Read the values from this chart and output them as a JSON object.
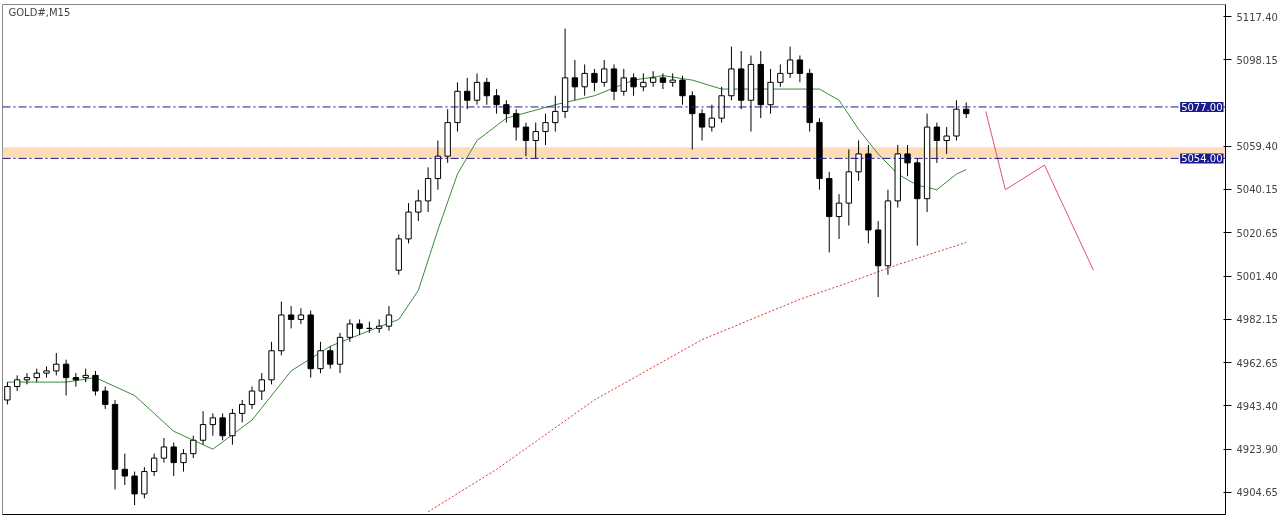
{
  "chart_data": {
    "type": "candlestick",
    "title": "GOLD#,M15",
    "categories": [
      null,
      null,
      null,
      null,
      null,
      null,
      null,
      null,
      null,
      null,
      null,
      null,
      null,
      null,
      null,
      null,
      null,
      null,
      null,
      null,
      null,
      null,
      null,
      null,
      null,
      null,
      null,
      null,
      null,
      null,
      null,
      null,
      null,
      null,
      null,
      null,
      null,
      null,
      null,
      null,
      null,
      null,
      null,
      null,
      null,
      null,
      null,
      null,
      null,
      null,
      null,
      null,
      null,
      null,
      null,
      null,
      null,
      null,
      null,
      null,
      null,
      null,
      null,
      null,
      null,
      null,
      null,
      null,
      null,
      null,
      null,
      null,
      null,
      null,
      null,
      null,
      null,
      null,
      null,
      null,
      null,
      null,
      null,
      null,
      null,
      null,
      null,
      null,
      null,
      null,
      null,
      null,
      null,
      null,
      null,
      null,
      null,
      null,
      null,
      null,
      null,
      null,
      null,
      null,
      null,
      null,
      null,
      null,
      null,
      null,
      null,
      null,
      null,
      null,
      null,
      null,
      null,
      null,
      null,
      null,
      null,
      null,
      null,
      null,
      null
    ],
    "ohlc": [
      [
        4946,
        4954,
        4944,
        4952
      ],
      [
        4952,
        4957,
        4950,
        4955
      ],
      [
        4955,
        4958,
        4953,
        4956
      ],
      [
        4956,
        4960,
        4954,
        4958
      ],
      [
        4958,
        4961,
        4956,
        4959
      ],
      [
        4959,
        4967,
        4957,
        4962
      ],
      [
        4962,
        4964,
        4948,
        4956
      ],
      [
        4956,
        4958,
        4952,
        4955
      ],
      [
        4956,
        4960,
        4954,
        4957
      ],
      [
        4957,
        4959,
        4948,
        4950
      ],
      [
        4950,
        4952,
        4942,
        4944
      ],
      [
        4944,
        4946,
        4906,
        4915
      ],
      [
        4915,
        4922,
        4908,
        4912
      ],
      [
        4912,
        4914,
        4899,
        4904
      ],
      [
        4904,
        4916,
        4902,
        4914
      ],
      [
        4914,
        4922,
        4912,
        4920
      ],
      [
        4920,
        4929,
        4918,
        4925
      ],
      [
        4925,
        4927,
        4912,
        4918
      ],
      [
        4918,
        4924,
        4914,
        4922
      ],
      [
        4922,
        4930,
        4920,
        4928
      ],
      [
        4928,
        4941,
        4926,
        4935
      ],
      [
        4935,
        4940,
        4930,
        4938
      ],
      [
        4938,
        4940,
        4928,
        4930
      ],
      [
        4930,
        4942,
        4926,
        4940
      ],
      [
        4940,
        4946,
        4936,
        4944
      ],
      [
        4944,
        4952,
        4942,
        4950
      ],
      [
        4950,
        4958,
        4946,
        4955
      ],
      [
        4955,
        4972,
        4953,
        4968
      ],
      [
        4968,
        4990,
        4966,
        4984
      ],
      [
        4984,
        4988,
        4978,
        4982
      ],
      [
        4982,
        4987,
        4980,
        4984
      ],
      [
        4984,
        4986,
        4956,
        4960
      ],
      [
        4960,
        4972,
        4958,
        4968
      ],
      [
        4968,
        4970,
        4960,
        4962
      ],
      [
        4962,
        4976,
        4958,
        4974
      ],
      [
        4974,
        4982,
        4972,
        4980
      ],
      [
        4980,
        4982,
        4975,
        4978
      ],
      [
        4978,
        4981,
        4976,
        4978
      ],
      [
        4978,
        4982,
        4976,
        4979
      ],
      [
        4979,
        4988,
        4977,
        4984
      ],
      [
        5004,
        5020,
        5002,
        5018
      ],
      [
        5018,
        5034,
        5016,
        5030
      ],
      [
        5030,
        5040,
        5026,
        5035
      ],
      [
        5035,
        5050,
        5030,
        5045
      ],
      [
        5045,
        5062,
        5040,
        5055
      ],
      [
        5055,
        5076,
        5052,
        5070
      ],
      [
        5070,
        5088,
        5066,
        5084
      ],
      [
        5084,
        5090,
        5076,
        5080
      ],
      [
        5080,
        5092,
        5078,
        5088
      ],
      [
        5088,
        5090,
        5078,
        5082
      ],
      [
        5082,
        5085,
        5074,
        5078
      ],
      [
        5078,
        5080,
        5070,
        5074
      ],
      [
        5074,
        5076,
        5062,
        5068
      ],
      [
        5068,
        5070,
        5055,
        5062
      ],
      [
        5062,
        5070,
        5054,
        5066
      ],
      [
        5066,
        5074,
        5060,
        5070
      ],
      [
        5070,
        5082,
        5066,
        5075
      ],
      [
        5075,
        5112,
        5072,
        5090
      ],
      [
        5090,
        5098,
        5080,
        5086
      ],
      [
        5086,
        5096,
        5082,
        5092
      ],
      [
        5092,
        5094,
        5084,
        5088
      ],
      [
        5088,
        5098,
        5086,
        5094
      ],
      [
        5094,
        5096,
        5080,
        5084
      ],
      [
        5084,
        5094,
        5082,
        5090
      ],
      [
        5090,
        5092,
        5082,
        5086
      ],
      [
        5086,
        5092,
        5084,
        5088
      ],
      [
        5088,
        5093,
        5086,
        5090
      ],
      [
        5090,
        5092,
        5085,
        5088
      ],
      [
        5088,
        5092,
        5086,
        5089
      ],
      [
        5089,
        5091,
        5078,
        5082
      ],
      [
        5082,
        5084,
        5058,
        5074
      ],
      [
        5074,
        5076,
        5062,
        5068
      ],
      [
        5068,
        5078,
        5066,
        5072
      ],
      [
        5072,
        5086,
        5070,
        5082
      ],
      [
        5082,
        5104,
        5080,
        5094
      ],
      [
        5094,
        5102,
        5076,
        5080
      ],
      [
        5080,
        5100,
        5066,
        5096
      ],
      [
        5096,
        5102,
        5072,
        5078
      ],
      [
        5078,
        5094,
        5074,
        5088
      ],
      [
        5088,
        5096,
        5086,
        5092
      ],
      [
        5092,
        5104,
        5090,
        5098
      ],
      [
        5098,
        5100,
        5088,
        5092
      ],
      [
        5092,
        5094,
        5066,
        5070
      ],
      [
        5070,
        5072,
        5040,
        5045
      ],
      [
        5045,
        5048,
        5012,
        5028
      ],
      [
        5028,
        5038,
        5018,
        5034
      ],
      [
        5034,
        5058,
        5024,
        5048
      ],
      [
        5048,
        5062,
        5044,
        5056
      ],
      [
        5056,
        5060,
        5016,
        5022
      ],
      [
        5022,
        5026,
        4992,
        5006
      ],
      [
        5006,
        5040,
        5002,
        5035
      ],
      [
        5035,
        5060,
        5032,
        5056
      ],
      [
        5056,
        5060,
        5046,
        5052
      ],
      [
        5052,
        5054,
        5015,
        5036
      ],
      [
        5036,
        5074,
        5030,
        5068
      ],
      [
        5068,
        5070,
        5052,
        5062
      ],
      [
        5062,
        5068,
        5056,
        5064
      ],
      [
        5064,
        5080,
        5062,
        5076
      ],
      [
        5076,
        5079,
        5072,
        5074
      ],
      null,
      null,
      null,
      null,
      null,
      null,
      null,
      null,
      null,
      null,
      null,
      null,
      null,
      null,
      null,
      null,
      null,
      null,
      null,
      null,
      null,
      null,
      null,
      null,
      null,
      null
    ],
    "series": [
      {
        "type": "line",
        "color": "#3a8a3a",
        "line_style": "solid",
        "values": [
          4954,
          null,
          null,
          null,
          null,
          null,
          4954,
          null,
          null,
          4956,
          null,
          null,
          null,
          4948,
          null,
          null,
          null,
          4932,
          null,
          null,
          null,
          4924,
          null,
          null,
          null,
          4937,
          null,
          null,
          null,
          4959,
          null,
          null,
          null,
          4970,
          null,
          null,
          null,
          4977,
          null,
          null,
          4982,
          null,
          4995,
          null,
          5022,
          null,
          5047,
          null,
          5062,
          null,
          null,
          5072,
          null,
          null,
          null,
          null,
          5078,
          null,
          null,
          null,
          5082,
          null,
          null,
          null,
          5089,
          null,
          null,
          5091,
          null,
          null,
          5089,
          null,
          null,
          5085,
          null,
          null,
          null,
          5085,
          null,
          null,
          null,
          null,
          null,
          5085,
          null,
          5080,
          null,
          5067,
          null,
          5056,
          null,
          5047,
          null,
          5042,
          null,
          5040,
          null,
          5047,
          5049,
          null,
          null,
          null,
          null,
          null,
          null,
          null,
          null,
          null,
          null,
          null,
          null,
          null,
          null,
          null,
          null,
          null,
          null,
          null,
          null,
          null,
          null,
          null,
          null,
          null,
          null
        ]
      },
      {
        "type": "line",
        "color": "#e03030",
        "line_style": "dotted",
        "values": [
          null,
          null,
          null,
          null,
          null,
          null,
          null,
          null,
          null,
          null,
          null,
          null,
          null,
          null,
          null,
          null,
          null,
          null,
          null,
          null,
          null,
          null,
          null,
          null,
          null,
          null,
          null,
          null,
          null,
          null,
          null,
          null,
          null,
          null,
          null,
          null,
          null,
          null,
          null,
          null,
          null,
          null,
          null,
          4896,
          null,
          null,
          null,
          null,
          null,
          null,
          4915,
          null,
          null,
          null,
          null,
          null,
          null,
          null,
          null,
          null,
          4946,
          null,
          null,
          null,
          null,
          null,
          null,
          null,
          null,
          null,
          null,
          4973,
          null,
          null,
          null,
          null,
          null,
          null,
          null,
          null,
          null,
          4991,
          null,
          null,
          null,
          null,
          4998.5,
          null,
          null,
          null,
          null,
          5006.5,
          null,
          null,
          null,
          null,
          null,
          null,
          5016.4,
          null,
          null,
          null,
          null,
          null,
          null,
          null,
          null,
          null,
          null,
          null,
          null,
          null,
          null,
          null,
          null,
          null,
          null,
          null,
          null,
          null,
          null,
          null,
          null,
          null,
          null
        ]
      },
      {
        "type": "line",
        "color": "#e0507a",
        "line_style": "solid",
        "values": [
          null,
          null,
          null,
          null,
          null,
          null,
          null,
          null,
          null,
          null,
          null,
          null,
          null,
          null,
          null,
          null,
          null,
          null,
          null,
          null,
          null,
          null,
          null,
          null,
          null,
          null,
          null,
          null,
          null,
          null,
          null,
          null,
          null,
          null,
          null,
          null,
          null,
          null,
          null,
          null,
          null,
          null,
          null,
          null,
          null,
          null,
          null,
          null,
          null,
          null,
          null,
          null,
          null,
          null,
          null,
          null,
          null,
          null,
          null,
          null,
          null,
          null,
          null,
          null,
          null,
          null,
          null,
          null,
          null,
          null,
          null,
          null,
          null,
          null,
          null,
          null,
          null,
          null,
          null,
          null,
          null,
          null,
          null,
          null,
          null,
          null,
          null,
          null,
          null,
          null,
          null,
          null,
          null,
          null,
          null,
          null,
          null,
          null,
          null,
          null,
          5075,
          null,
          5040,
          null,
          null,
          null,
          5051,
          null,
          null,
          null,
          null,
          5004,
          null,
          null,
          null,
          null,
          null,
          null,
          null,
          null,
          null,
          null,
          null,
          null,
          null
        ]
      }
    ],
    "ylim": [
      4894.8,
      5122.8
    ],
    "yticks": [
      {
        "value": 5117.4,
        "label": "5117.40"
      },
      {
        "value": 5098.15,
        "label": "5098.15"
      },
      {
        "value": 5059.4,
        "label": "5059.40"
      },
      {
        "value": 5040.15,
        "label": "5040.15"
      },
      {
        "value": 5020.65,
        "label": "5020.65"
      },
      {
        "value": 5001.4,
        "label": "5001.40"
      },
      {
        "value": 4982.15,
        "label": "4982.15"
      },
      {
        "value": 4962.65,
        "label": "4962.65"
      },
      {
        "value": 4943.4,
        "label": "4943.40"
      },
      {
        "value": 4923.9,
        "label": "4923.90"
      },
      {
        "value": 4904.65,
        "label": "4904.65"
      }
    ],
    "ref_lines": [
      {
        "axis": "y",
        "value": 5077,
        "label": "5077.00",
        "color": "#1a1a8c",
        "line_style": "dashed"
      },
      {
        "axis": "y",
        "value": 5054,
        "label": "5054.00",
        "color": "#1a1a8c",
        "line_style": "dashed"
      }
    ],
    "bands": [
      {
        "axis": "y",
        "from": 5054,
        "to": 5059,
        "color": "#fcd9b0"
      }
    ],
    "grid": false
  }
}
